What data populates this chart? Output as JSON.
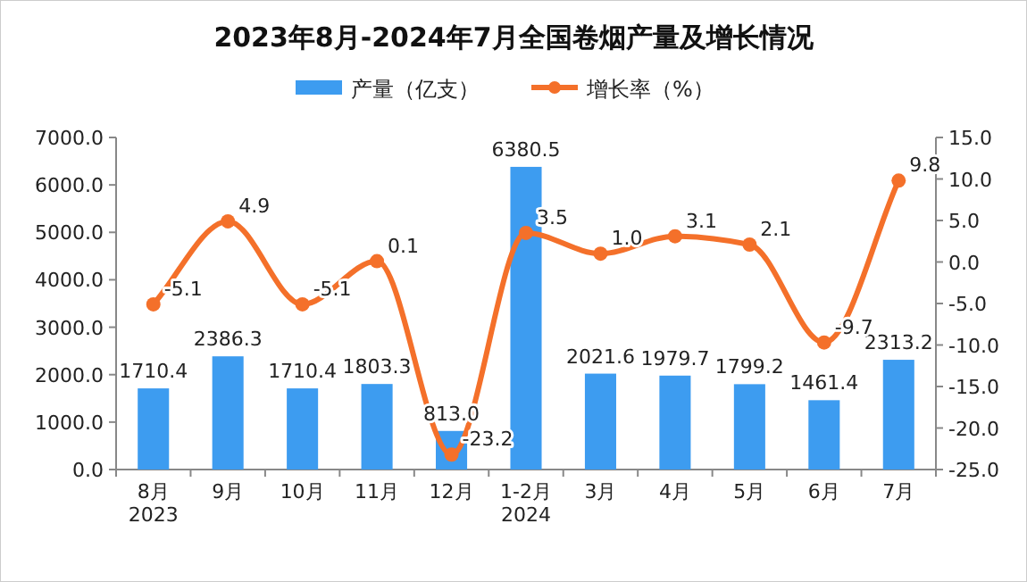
{
  "chart_data": {
    "type": "bar",
    "title": "2023年8月-2024年7月全国卷烟产量及增长情况",
    "categories": [
      "8月\n2023",
      "9月",
      "10月",
      "11月",
      "12月",
      "1-2月\n2024",
      "3月",
      "4月",
      "5月",
      "6月",
      "7月"
    ],
    "series": [
      {
        "name": "产量（亿支）",
        "color": "#3d9cf0",
        "values": [
          1710.4,
          2386.3,
          1710.4,
          1803.3,
          813.0,
          6380.5,
          2021.6,
          1979.7,
          1799.2,
          1461.4,
          2313.2
        ],
        "value_labels": [
          "1710.4",
          "2386.3",
          "1710.4",
          "1803.3",
          "813.0",
          "6380.5",
          "2021.6",
          "1979.7",
          "1799.2",
          "1461.4",
          "2313.2"
        ]
      },
      {
        "name": "增长率（%）",
        "type": "line",
        "axis": "y2",
        "color": "#f4702a",
        "marker": "circle",
        "values": [
          -5.1,
          4.9,
          -5.1,
          0.1,
          -23.2,
          3.5,
          1.0,
          3.1,
          2.1,
          -9.7,
          9.8
        ],
        "value_labels": [
          "-5.1",
          "4.9",
          "-5.1",
          "0.1",
          "-23.2",
          "3.5",
          "1.0",
          "3.1",
          "2.1",
          "-9.7",
          "9.8"
        ]
      }
    ],
    "ylim": [
      0,
      7000
    ],
    "yticks": [
      {
        "value": 0,
        "label": "0.0"
      },
      {
        "value": 1000,
        "label": "1000.0"
      },
      {
        "value": 2000,
        "label": "2000.0"
      },
      {
        "value": 3000,
        "label": "3000.0"
      },
      {
        "value": 4000,
        "label": "4000.0"
      },
      {
        "value": 5000,
        "label": "5000.0"
      },
      {
        "value": 6000,
        "label": "6000.0"
      },
      {
        "value": 7000,
        "label": "7000.0"
      }
    ],
    "y2lim": [
      -25,
      15
    ],
    "y2ticks": [
      {
        "value": -25,
        "label": "-25.0"
      },
      {
        "value": -20,
        "label": "-20.0"
      },
      {
        "value": -15,
        "label": "-15.0"
      },
      {
        "value": -10,
        "label": "-10.0"
      },
      {
        "value": -5,
        "label": "-5.0"
      },
      {
        "value": 0,
        "label": "0.0"
      },
      {
        "value": 5,
        "label": "5.0"
      },
      {
        "value": 10,
        "label": "10.0"
      },
      {
        "value": 15,
        "label": "15.0"
      }
    ],
    "legend": "top",
    "grid": false
  }
}
